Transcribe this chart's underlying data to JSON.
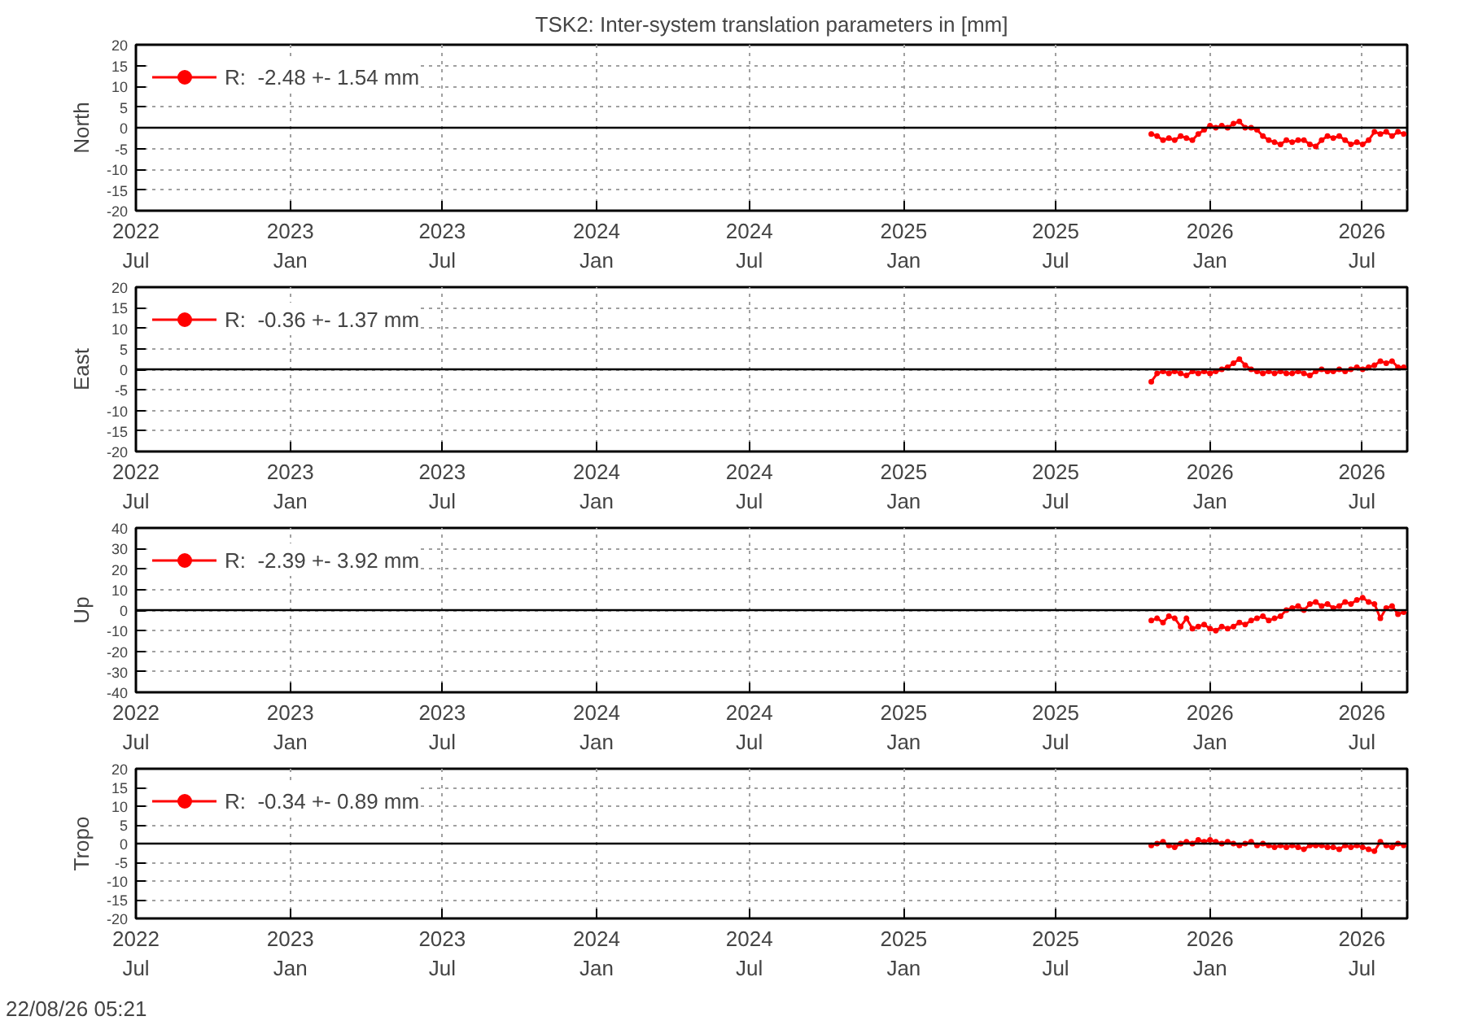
{
  "chart_data": [
    {
      "type": "line",
      "title": "TSK2: Inter-system translation parameters in [mm]",
      "ylabel": "North",
      "marker": "circle",
      "line_style": "solid",
      "legend": "top left",
      "grid": true,
      "x": [
        "2025-10-23",
        "2025-10-30",
        "2025-11-06",
        "2025-11-13",
        "2025-11-20",
        "2025-11-27",
        "2025-12-04",
        "2025-12-11",
        "2025-12-18",
        "2025-12-25",
        "2026-01-01",
        "2026-01-08",
        "2026-01-15",
        "2026-01-22",
        "2026-01-29",
        "2026-02-05",
        "2026-02-12",
        "2026-02-19",
        "2026-02-26",
        "2026-03-05",
        "2026-03-12",
        "2026-03-19",
        "2026-03-26",
        "2026-04-02",
        "2026-04-09",
        "2026-04-16",
        "2026-04-23",
        "2026-04-30",
        "2026-05-07",
        "2026-05-14",
        "2026-05-21",
        "2026-05-28",
        "2026-06-04",
        "2026-06-11",
        "2026-06-18",
        "2026-06-25",
        "2026-07-02",
        "2026-07-09",
        "2026-07-16",
        "2026-07-23",
        "2026-07-30",
        "2026-08-06",
        "2026-08-13",
        "2026-08-20"
      ],
      "series": [
        {
          "name": "R:  -2.48 +- 1.54 mm",
          "color": "#ff0000",
          "values": [
            -1.5,
            -2,
            -3,
            -2.5,
            -3,
            -2,
            -2.5,
            -3,
            -1.5,
            -0.5,
            0.5,
            0,
            0.5,
            0,
            1,
            1.5,
            0,
            0,
            -0.5,
            -2,
            -3,
            -3.5,
            -4,
            -3,
            -3.5,
            -3,
            -3,
            -4,
            -4.5,
            -3,
            -2,
            -2.5,
            -2,
            -3,
            -4,
            -3.5,
            -4,
            -3,
            -1,
            -1.5,
            -1,
            -2,
            -1,
            -1.5
          ]
        }
      ],
      "xlim": [
        "2022-07-01",
        "2026-08-24"
      ],
      "xticks": [
        {
          "value": "2022-07-01",
          "label": "2022\nJul"
        },
        {
          "value": "2023-01-01",
          "label": "2023\nJan"
        },
        {
          "value": "2023-07-01",
          "label": "2023\nJul"
        },
        {
          "value": "2024-01-01",
          "label": "2024\nJan"
        },
        {
          "value": "2024-07-01",
          "label": "2024\nJul"
        },
        {
          "value": "2025-01-01",
          "label": "2025\nJan"
        },
        {
          "value": "2025-07-01",
          "label": "2025\nJul"
        },
        {
          "value": "2026-01-01",
          "label": "2026\nJan"
        },
        {
          "value": "2026-07-01",
          "label": "2026\nJul"
        }
      ],
      "ylim": [
        -20,
        20
      ],
      "yticks": [
        -20,
        -15,
        -10,
        -5,
        0,
        5,
        10,
        15,
        20
      ],
      "ref_lines": [
        {
          "axis": "y",
          "value": 0,
          "color": "#000000"
        }
      ]
    },
    {
      "type": "line",
      "ylabel": "East",
      "marker": "circle",
      "line_style": "solid",
      "legend": "top left",
      "grid": true,
      "x": [
        "2025-10-23",
        "2025-10-30",
        "2025-11-06",
        "2025-11-13",
        "2025-11-20",
        "2025-11-27",
        "2025-12-04",
        "2025-12-11",
        "2025-12-18",
        "2025-12-25",
        "2026-01-01",
        "2026-01-08",
        "2026-01-15",
        "2026-01-22",
        "2026-01-29",
        "2026-02-05",
        "2026-02-12",
        "2026-02-19",
        "2026-02-26",
        "2026-03-05",
        "2026-03-12",
        "2026-03-19",
        "2026-03-26",
        "2026-04-02",
        "2026-04-09",
        "2026-04-16",
        "2026-04-23",
        "2026-04-30",
        "2026-05-07",
        "2026-05-14",
        "2026-05-21",
        "2026-05-28",
        "2026-06-04",
        "2026-06-11",
        "2026-06-18",
        "2026-06-25",
        "2026-07-02",
        "2026-07-09",
        "2026-07-16",
        "2026-07-23",
        "2026-07-30",
        "2026-08-06",
        "2026-08-13",
        "2026-08-20"
      ],
      "series": [
        {
          "name": "R:  -0.36 +- 1.37 mm",
          "color": "#ff0000",
          "values": [
            -3,
            -1,
            -0.5,
            -1,
            -0.5,
            -1,
            -1.5,
            -0.5,
            -1,
            -0.5,
            -1,
            -0.5,
            0,
            0.5,
            1.5,
            2.5,
            1,
            0,
            -0.5,
            -1,
            -0.5,
            -1,
            -0.5,
            -1,
            -1,
            -0.5,
            -1,
            -1.5,
            -0.5,
            0,
            -0.5,
            -0.5,
            0,
            -0.5,
            0,
            0.5,
            0,
            0.5,
            1,
            2,
            1.5,
            2,
            0.5,
            0.5
          ]
        }
      ],
      "xlim": [
        "2022-07-01",
        "2026-08-24"
      ],
      "xticks": [
        {
          "value": "2022-07-01",
          "label": "2022\nJul"
        },
        {
          "value": "2023-01-01",
          "label": "2023\nJan"
        },
        {
          "value": "2023-07-01",
          "label": "2023\nJul"
        },
        {
          "value": "2024-01-01",
          "label": "2024\nJan"
        },
        {
          "value": "2024-07-01",
          "label": "2024\nJul"
        },
        {
          "value": "2025-01-01",
          "label": "2025\nJan"
        },
        {
          "value": "2025-07-01",
          "label": "2025\nJul"
        },
        {
          "value": "2026-01-01",
          "label": "2026\nJan"
        },
        {
          "value": "2026-07-01",
          "label": "2026\nJul"
        }
      ],
      "ylim": [
        -20,
        20
      ],
      "yticks": [
        -20,
        -15,
        -10,
        -5,
        0,
        5,
        10,
        15,
        20
      ],
      "ref_lines": [
        {
          "axis": "y",
          "value": 0,
          "color": "#000000"
        }
      ]
    },
    {
      "type": "line",
      "ylabel": "Up",
      "marker": "circle",
      "line_style": "solid",
      "legend": "top left",
      "grid": true,
      "x": [
        "2025-10-23",
        "2025-10-30",
        "2025-11-06",
        "2025-11-13",
        "2025-11-20",
        "2025-11-27",
        "2025-12-04",
        "2025-12-11",
        "2025-12-18",
        "2025-12-25",
        "2026-01-01",
        "2026-01-08",
        "2026-01-15",
        "2026-01-22",
        "2026-01-29",
        "2026-02-05",
        "2026-02-12",
        "2026-02-19",
        "2026-02-26",
        "2026-03-05",
        "2026-03-12",
        "2026-03-19",
        "2026-03-26",
        "2026-04-02",
        "2026-04-09",
        "2026-04-16",
        "2026-04-23",
        "2026-04-30",
        "2026-05-07",
        "2026-05-14",
        "2026-05-21",
        "2026-05-28",
        "2026-06-04",
        "2026-06-11",
        "2026-06-18",
        "2026-06-25",
        "2026-07-02",
        "2026-07-09",
        "2026-07-16",
        "2026-07-23",
        "2026-07-30",
        "2026-08-06",
        "2026-08-13",
        "2026-08-20"
      ],
      "series": [
        {
          "name": "R:  -2.39 +- 3.92 mm",
          "color": "#ff0000",
          "values": [
            -5,
            -4,
            -6,
            -3,
            -4,
            -8,
            -4,
            -9,
            -8,
            -7,
            -9,
            -10,
            -8,
            -9,
            -8,
            -6,
            -7,
            -5,
            -4,
            -3,
            -5,
            -4,
            -3,
            0,
            1,
            2,
            0,
            3,
            4,
            2,
            3,
            1,
            2,
            4,
            3,
            5,
            6,
            4,
            3,
            -4,
            1,
            2,
            -2,
            -1
          ]
        }
      ],
      "xlim": [
        "2022-07-01",
        "2026-08-24"
      ],
      "xticks": [
        {
          "value": "2022-07-01",
          "label": "2022\nJul"
        },
        {
          "value": "2023-01-01",
          "label": "2023\nJan"
        },
        {
          "value": "2023-07-01",
          "label": "2023\nJul"
        },
        {
          "value": "2024-01-01",
          "label": "2024\nJan"
        },
        {
          "value": "2024-07-01",
          "label": "2024\nJul"
        },
        {
          "value": "2025-01-01",
          "label": "2025\nJan"
        },
        {
          "value": "2025-07-01",
          "label": "2025\nJul"
        },
        {
          "value": "2026-01-01",
          "label": "2026\nJan"
        },
        {
          "value": "2026-07-01",
          "label": "2026\nJul"
        }
      ],
      "ylim": [
        -40,
        40
      ],
      "yticks": [
        -40,
        -30,
        -20,
        -10,
        0,
        10,
        20,
        30,
        40
      ],
      "ref_lines": [
        {
          "axis": "y",
          "value": 0,
          "color": "#000000"
        }
      ]
    },
    {
      "type": "line",
      "ylabel": "Tropo",
      "marker": "circle",
      "line_style": "solid",
      "legend": "top left",
      "grid": true,
      "x": [
        "2025-10-23",
        "2025-10-30",
        "2025-11-06",
        "2025-11-13",
        "2025-11-20",
        "2025-11-27",
        "2025-12-04",
        "2025-12-11",
        "2025-12-18",
        "2025-12-25",
        "2026-01-01",
        "2026-01-08",
        "2026-01-15",
        "2026-01-22",
        "2026-01-29",
        "2026-02-05",
        "2026-02-12",
        "2026-02-19",
        "2026-02-26",
        "2026-03-05",
        "2026-03-12",
        "2026-03-19",
        "2026-03-26",
        "2026-04-02",
        "2026-04-09",
        "2026-04-16",
        "2026-04-23",
        "2026-04-30",
        "2026-05-07",
        "2026-05-14",
        "2026-05-21",
        "2026-05-28",
        "2026-06-04",
        "2026-06-11",
        "2026-06-18",
        "2026-06-25",
        "2026-07-02",
        "2026-07-09",
        "2026-07-16",
        "2026-07-23",
        "2026-07-30",
        "2026-08-06",
        "2026-08-13",
        "2026-08-20"
      ],
      "series": [
        {
          "name": "R:  -0.34 +- 0.89 mm",
          "color": "#ff0000",
          "values": [
            -0.5,
            0,
            0.5,
            -0.5,
            -1,
            0,
            0.5,
            0,
            1,
            0.5,
            1,
            0.5,
            0,
            0.5,
            0,
            -0.5,
            0,
            0.5,
            -0.5,
            0,
            -0.5,
            -1,
            -0.5,
            -1,
            -0.5,
            -1,
            -1.5,
            -0.5,
            -0.5,
            -0.5,
            -1,
            -1,
            -1.5,
            -0.5,
            -1,
            -0.5,
            -1,
            -1.5,
            -2,
            0.5,
            -0.5,
            -1,
            0,
            -0.5
          ]
        }
      ],
      "xlim": [
        "2022-07-01",
        "2026-08-24"
      ],
      "xticks": [
        {
          "value": "2022-07-01",
          "label": "2022\nJul"
        },
        {
          "value": "2023-01-01",
          "label": "2023\nJan"
        },
        {
          "value": "2023-07-01",
          "label": "2023\nJul"
        },
        {
          "value": "2024-01-01",
          "label": "2024\nJan"
        },
        {
          "value": "2024-07-01",
          "label": "2024\nJul"
        },
        {
          "value": "2025-01-01",
          "label": "2025\nJan"
        },
        {
          "value": "2025-07-01",
          "label": "2025\nJul"
        },
        {
          "value": "2026-01-01",
          "label": "2026\nJan"
        },
        {
          "value": "2026-07-01",
          "label": "2026\nJul"
        }
      ],
      "ylim": [
        -20,
        20
      ],
      "yticks": [
        -20,
        -15,
        -10,
        -5,
        0,
        5,
        10,
        15,
        20
      ],
      "ref_lines": [
        {
          "axis": "y",
          "value": 0,
          "color": "#000000"
        }
      ],
      "annotations": [
        "22/08/26 05:21"
      ]
    }
  ]
}
